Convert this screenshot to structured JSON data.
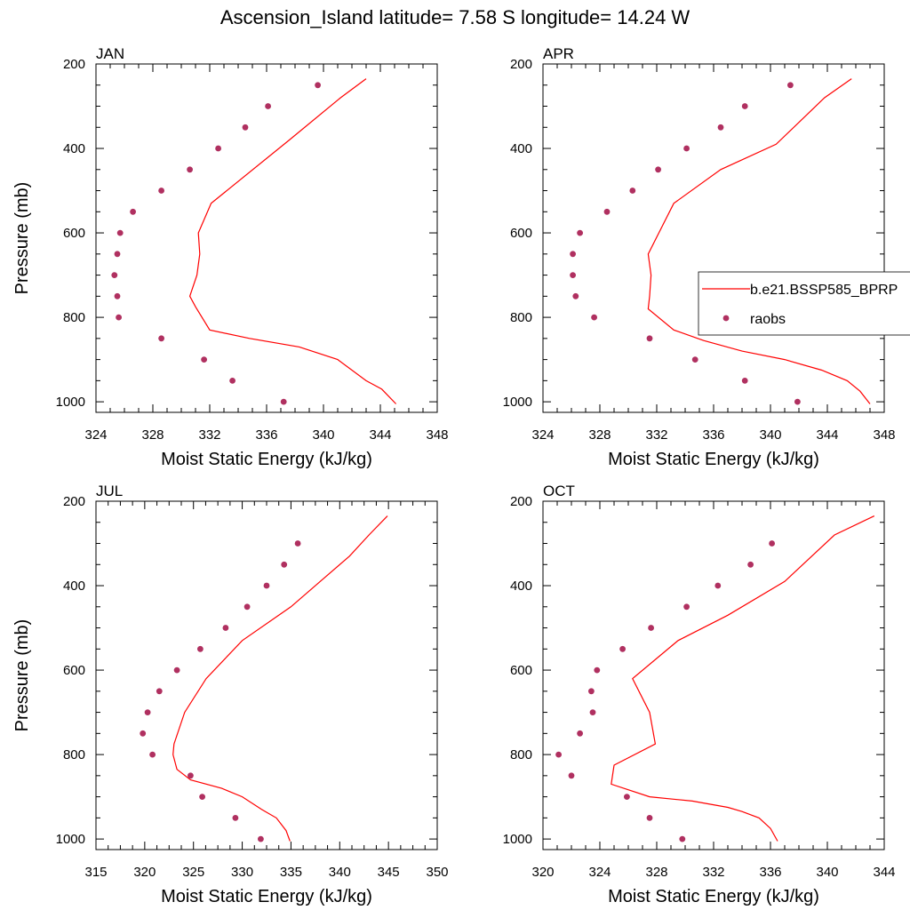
{
  "title": "Ascension_Island  latitude= 7.58 S longitude= 14.24 W",
  "colors": {
    "model": "#ff0000",
    "obs": "#b03060"
  },
  "legend": {
    "placement": "right of APR panel",
    "entries": [
      {
        "label": "b.e21.BSSP585_BPRP",
        "style": "line"
      },
      {
        "label": "raobs",
        "style": "marker"
      }
    ]
  },
  "chart_data": [
    {
      "type": "line",
      "panel": "JAN",
      "title": "JAN",
      "xlabel": "Moist Static Energy (kJ/kg)",
      "ylabel": "Pressure (mb)",
      "xlim": [
        324,
        348
      ],
      "xticks": [
        324,
        328,
        332,
        336,
        340,
        344,
        348
      ],
      "ylim": [
        200,
        1025
      ],
      "yticks": [
        200,
        400,
        600,
        800,
        1000
      ],
      "y_inverted": true,
      "series": [
        {
          "style": "line",
          "x": [
            345.1,
            344.1,
            343.0,
            341.0,
            338.3,
            334.8,
            332.0,
            331.0,
            330.6,
            331.1,
            331.3,
            331.2,
            332.1,
            337.6,
            341.2,
            343.0
          ],
          "y": [
            1005,
            970,
            950,
            900,
            870,
            850,
            830,
            775,
            750,
            700,
            650,
            600,
            530,
            380,
            280,
            235
          ]
        },
        {
          "style": "scatter",
          "x": [
            337.2,
            333.6,
            331.6,
            328.6,
            325.6,
            325.5,
            325.3,
            325.5,
            325.7,
            326.6,
            328.6,
            330.6,
            332.6,
            334.5,
            336.1,
            339.6
          ],
          "y": [
            1000,
            950,
            900,
            850,
            800,
            750,
            700,
            650,
            600,
            550,
            500,
            450,
            400,
            350,
            300,
            250
          ]
        }
      ]
    },
    {
      "type": "line",
      "panel": "APR",
      "title": "APR",
      "xlabel": "Moist Static Energy (kJ/kg)",
      "ylabel": "",
      "xlim": [
        324,
        348
      ],
      "xticks": [
        324,
        328,
        332,
        336,
        340,
        344,
        348
      ],
      "ylim": [
        200,
        1025
      ],
      "yticks": [
        200,
        400,
        600,
        800,
        1000
      ],
      "y_inverted": true,
      "series": [
        {
          "style": "line",
          "x": [
            347.0,
            346.3,
            345.4,
            343.6,
            341.0,
            338.0,
            335.3,
            333.2,
            331.4,
            331.5,
            331.6,
            331.4,
            333.2,
            336.5,
            340.4,
            343.8,
            345.7
          ],
          "y": [
            1005,
            975,
            950,
            925,
            900,
            880,
            855,
            830,
            780,
            750,
            700,
            650,
            530,
            450,
            390,
            280,
            235
          ]
        },
        {
          "style": "scatter",
          "x": [
            341.9,
            338.2,
            334.7,
            331.5,
            327.6,
            326.3,
            326.1,
            326.1,
            326.6,
            328.5,
            330.3,
            332.1,
            334.1,
            336.5,
            338.2,
            341.4
          ],
          "y": [
            1000,
            950,
            900,
            850,
            800,
            750,
            700,
            650,
            600,
            550,
            500,
            450,
            400,
            350,
            300,
            250
          ]
        }
      ]
    },
    {
      "type": "line",
      "panel": "JUL",
      "title": "JUL",
      "xlabel": "Moist Static Energy (kJ/kg)",
      "ylabel": "Pressure (mb)",
      "xlim": [
        315,
        350
      ],
      "xticks": [
        315,
        320,
        325,
        330,
        335,
        340,
        345,
        350
      ],
      "ylim": [
        200,
        1025
      ],
      "yticks": [
        200,
        400,
        600,
        800,
        1000
      ],
      "y_inverted": true,
      "series": [
        {
          "style": "line",
          "x": [
            334.9,
            334.5,
            333.5,
            332.0,
            330.0,
            327.9,
            324.7,
            323.3,
            322.9,
            323.0,
            324.1,
            326.3,
            330.0,
            335.0,
            338.0,
            341.0,
            343.0,
            344.9
          ],
          "y": [
            1005,
            980,
            950,
            930,
            900,
            880,
            860,
            835,
            800,
            775,
            700,
            620,
            530,
            450,
            390,
            330,
            280,
            235
          ]
        },
        {
          "style": "scatter",
          "x": [
            331.9,
            329.3,
            325.9,
            324.7,
            320.8,
            319.8,
            320.3,
            321.5,
            323.3,
            325.7,
            328.3,
            330.5,
            332.5,
            334.3,
            335.7
          ],
          "y": [
            1000,
            950,
            900,
            850,
            800,
            750,
            700,
            650,
            600,
            550,
            500,
            450,
            400,
            350,
            300
          ]
        }
      ]
    },
    {
      "type": "line",
      "panel": "OCT",
      "title": "OCT",
      "xlabel": "Moist Static Energy (kJ/kg)",
      "ylabel": "",
      "xlim": [
        320,
        344
      ],
      "xticks": [
        320,
        324,
        328,
        332,
        336,
        340,
        344
      ],
      "ylim": [
        200,
        1025
      ],
      "yticks": [
        200,
        400,
        600,
        800,
        1000
      ],
      "y_inverted": true,
      "series": [
        {
          "style": "line",
          "x": [
            336.5,
            336.0,
            335.2,
            334.0,
            333.0,
            330.5,
            327.5,
            324.8,
            325.0,
            327.9,
            327.5,
            326.3,
            329.5,
            333.0,
            337.0,
            340.5,
            343.3
          ],
          "y": [
            1005,
            975,
            950,
            935,
            925,
            910,
            900,
            870,
            825,
            775,
            700,
            620,
            530,
            470,
            390,
            280,
            235
          ]
        },
        {
          "style": "scatter",
          "x": [
            329.8,
            327.5,
            325.9,
            322.0,
            321.1,
            322.6,
            323.5,
            323.4,
            323.8,
            325.6,
            327.6,
            330.1,
            332.3,
            334.6,
            336.1
          ],
          "y": [
            1000,
            950,
            900,
            850,
            800,
            750,
            700,
            650,
            600,
            550,
            500,
            450,
            400,
            350,
            300
          ]
        }
      ]
    }
  ]
}
